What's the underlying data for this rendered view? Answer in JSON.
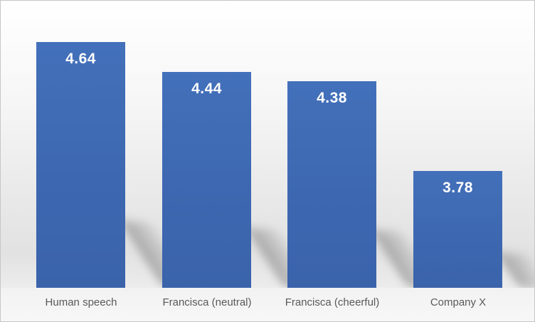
{
  "chart_data": {
    "type": "bar",
    "title": "",
    "xlabel": "",
    "ylabel": "",
    "categories": [
      "Human speech",
      "Francisca (neutral)",
      "Francisca (cheerful)",
      "Company X"
    ],
    "values": [
      4.64,
      4.44,
      4.38,
      3.78
    ],
    "data_labels": [
      "4.64",
      "4.44",
      "4.38",
      "3.78"
    ],
    "ylim": [
      3.0,
      4.9
    ],
    "axes_visible": false,
    "gridlines": false,
    "legend": "none",
    "data_label_position": "inside-end",
    "bar_color": "#3D68B1",
    "value_label_color": "#FFFFFF",
    "category_label_color": "#595959"
  },
  "canvas": {
    "border_color": "#C6C6C6",
    "background_top": "#FFFFFF",
    "background_bottom": "#E2E2E2"
  }
}
